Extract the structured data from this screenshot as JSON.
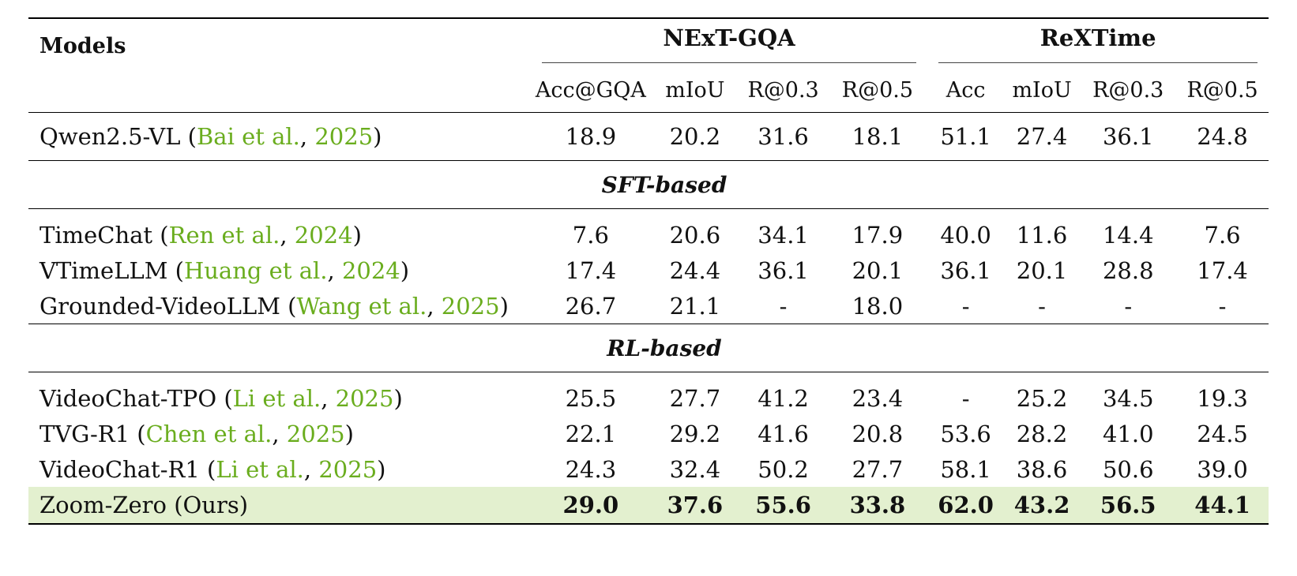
{
  "table": {
    "models_header": "Models",
    "groups": [
      "NExT-GQA",
      "ReXTime"
    ],
    "subheaders": [
      "Acc@GQA",
      "mIoU",
      "R@0.3",
      "R@0.5",
      "Acc",
      "mIoU",
      "R@0.3",
      "R@0.5"
    ],
    "baseline": {
      "name": "Qwen2.5-VL (",
      "cite_author": "Bai et al.",
      "sep": ", ",
      "cite_year": "2025",
      "close": ")",
      "values": [
        "18.9",
        "20.2",
        "31.6",
        "18.1",
        "51.1",
        "27.4",
        "36.1",
        "24.8"
      ]
    },
    "section_sft": "SFT-based",
    "sft_rows": [
      {
        "name": "TimeChat (",
        "cite_author": "Ren et al.",
        "sep": ", ",
        "cite_year": "2024",
        "close": ")",
        "values": [
          "7.6",
          "20.6",
          "34.1",
          "17.9",
          "40.0",
          "11.6",
          "14.4",
          "7.6"
        ]
      },
      {
        "name": "VTimeLLM (",
        "cite_author": "Huang et al.",
        "sep": ", ",
        "cite_year": "2024",
        "close": ")",
        "values": [
          "17.4",
          "24.4",
          "36.1",
          "20.1",
          "36.1",
          "20.1",
          "28.8",
          "17.4"
        ]
      },
      {
        "name": "Grounded-VideoLLM (",
        "cite_author": "Wang et al.",
        "sep": ", ",
        "cite_year": "2025",
        "close": ")",
        "values": [
          "26.7",
          "21.1",
          "-",
          "18.0",
          "-",
          "-",
          "-",
          "-"
        ]
      }
    ],
    "section_rl": "RL-based",
    "rl_rows": [
      {
        "name": "VideoChat-TPO (",
        "cite_author": "Li et al.",
        "sep": ", ",
        "cite_year": "2025",
        "close": ")",
        "values": [
          "25.5",
          "27.7",
          "41.2",
          "23.4",
          "-",
          "25.2",
          "34.5",
          "19.3"
        ]
      },
      {
        "name": "TVG-R1 (",
        "cite_author": "Chen et al.",
        "sep": ", ",
        "cite_year": "2025",
        "close": ")",
        "values": [
          "22.1",
          "29.2",
          "41.6",
          "20.8",
          "53.6",
          "28.2",
          "41.0",
          "24.5"
        ]
      },
      {
        "name": "VideoChat-R1 (",
        "cite_author": "Li et al.",
        "sep": ", ",
        "cite_year": "2025",
        "close": ")",
        "values": [
          "24.3",
          "32.4",
          "50.2",
          "27.7",
          "58.1",
          "38.6",
          "50.6",
          "39.0"
        ]
      }
    ],
    "ours": {
      "name": "Zoom-Zero (Ours)",
      "values": [
        "29.0",
        "37.6",
        "55.6",
        "33.8",
        "62.0",
        "43.2",
        "56.5",
        "44.1"
      ]
    }
  }
}
